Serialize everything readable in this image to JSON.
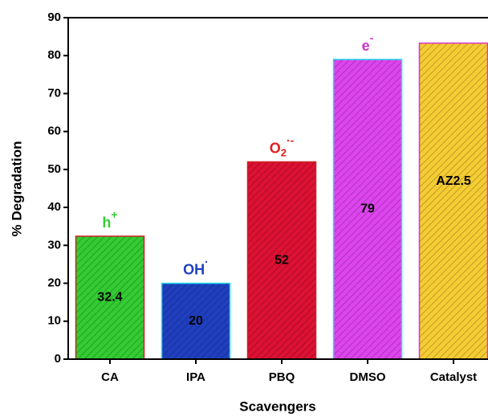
{
  "chart_data": {
    "type": "bar",
    "x_label": "Scavengers",
    "y_label": "% Degradation",
    "categories": [
      "CA",
      "IPA",
      "PBQ",
      "DMSO",
      "Catalyst"
    ],
    "values": [
      32.4,
      20,
      52,
      79,
      83.3
    ],
    "colors": [
      "#33cc33",
      "#1f3fbf",
      "#dd1133",
      "#dd44ee",
      "#f5cc33"
    ],
    "edge_colors": [
      "#cc2222",
      "#22ddee",
      "#cc2222",
      "#22ddee",
      "#dd33cc"
    ],
    "data_labels": [
      true,
      true,
      true,
      true,
      false
    ],
    "bar_annotations": [
      {
        "base": "h",
        "sup": "+",
        "color": "#33cc33"
      },
      {
        "base": "OH",
        "sup": "·",
        "color": "#1f3fbf"
      },
      {
        "base": "O",
        "sub": "2",
        "sup": "·-",
        "color": "#e02020"
      },
      {
        "base": "e",
        "sup": "-",
        "color": "#cc33cc"
      }
    ],
    "catalyst_label": "AZ2.5",
    "ylim": [
      0,
      90
    ],
    "yticks": [
      0,
      10,
      20,
      30,
      40,
      50,
      60,
      70,
      80,
      90
    ],
    "grid": false
  }
}
